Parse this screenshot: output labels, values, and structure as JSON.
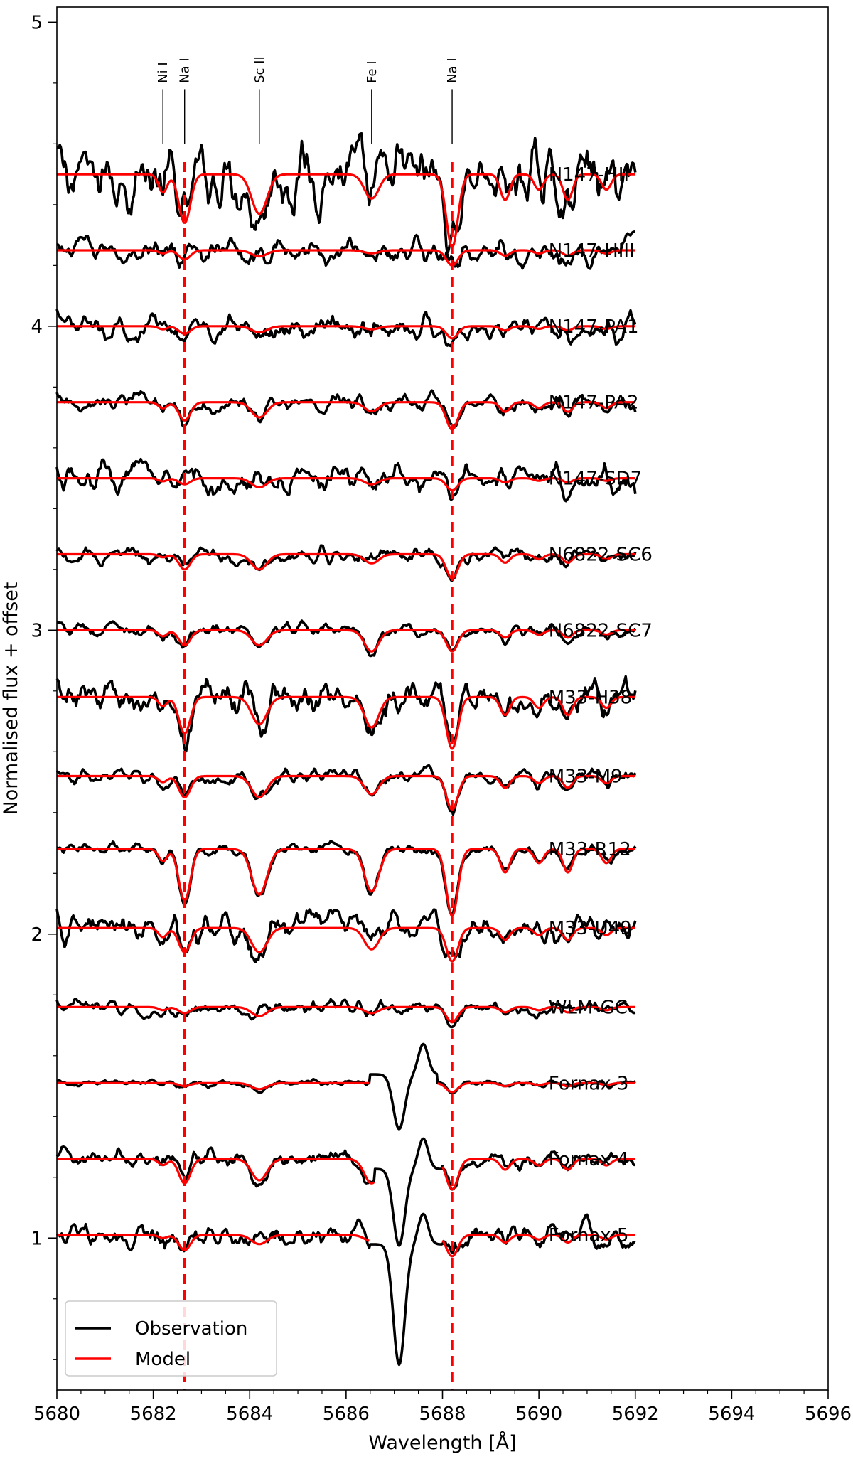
{
  "chart_data": {
    "type": "line",
    "xlabel": "Wavelength [Å]",
    "ylabel": "Normalised flux + offset",
    "xlim": [
      5680,
      5696
    ],
    "ylim": [
      0.5,
      5.05
    ],
    "xticks": [
      5680,
      5682,
      5684,
      5686,
      5688,
      5690,
      5692,
      5694,
      5696
    ],
    "yticks": [
      1,
      2,
      3,
      4,
      5
    ],
    "legend": {
      "position": "lower-left",
      "entries": [
        {
          "name": "Observation",
          "color": "#000000"
        },
        {
          "name": "Model",
          "color": "#ff0000"
        }
      ]
    },
    "spectral_lines": [
      {
        "label": "Ni I",
        "wavelength": 5682.2
      },
      {
        "label": "Na I",
        "wavelength": 5682.65
      },
      {
        "label": "Sc II",
        "wavelength": 5684.2
      },
      {
        "label": "Fe I",
        "wavelength": 5686.53
      },
      {
        "label": "Na I",
        "wavelength": 5688.2
      }
    ],
    "reference_lines": [
      5682.65,
      5688.2
    ],
    "colors": {
      "observation": "#000000",
      "model": "#ff0000"
    },
    "wavelength_range": [
      5680,
      5692
    ],
    "series": [
      {
        "name": "N147-HII",
        "offset": 4.5,
        "noise": 0.11,
        "depths": [
          0.06,
          0.16,
          0.13,
          0.08,
          0.24
        ],
        "masked": []
      },
      {
        "name": "N147-HIII",
        "offset": 4.25,
        "noise": 0.045,
        "depths": [
          0.01,
          0.03,
          0.02,
          0.01,
          0.05
        ],
        "masked": []
      },
      {
        "name": "N147-PA1",
        "offset": 4.0,
        "noise": 0.04,
        "depths": [
          0.01,
          0.025,
          0.02,
          0.01,
          0.04
        ],
        "masked": []
      },
      {
        "name": "N147-PA2",
        "offset": 3.75,
        "noise": 0.03,
        "depths": [
          0.02,
          0.06,
          0.05,
          0.03,
          0.09
        ],
        "masked": []
      },
      {
        "name": "N147-SD7",
        "offset": 3.5,
        "noise": 0.05,
        "depths": [
          0.01,
          0.02,
          0.03,
          0.02,
          0.04
        ],
        "masked": []
      },
      {
        "name": "N6822-SC6",
        "offset": 3.25,
        "noise": 0.025,
        "depths": [
          0.01,
          0.05,
          0.05,
          0.03,
          0.08
        ],
        "masked": []
      },
      {
        "name": "N6822-SC7",
        "offset": 3.0,
        "noise": 0.02,
        "depths": [
          0.02,
          0.05,
          0.05,
          0.07,
          0.07
        ],
        "masked": []
      },
      {
        "name": "M33-H38",
        "offset": 2.78,
        "noise": 0.06,
        "depths": [
          0.03,
          0.12,
          0.09,
          0.1,
          0.17
        ],
        "masked": []
      },
      {
        "name": "M33-M9",
        "offset": 2.52,
        "noise": 0.025,
        "depths": [
          0.02,
          0.07,
          0.07,
          0.06,
          0.11
        ],
        "masked": []
      },
      {
        "name": "M33-R12",
        "offset": 2.28,
        "noise": 0.02,
        "depths": [
          0.04,
          0.17,
          0.15,
          0.14,
          0.22
        ],
        "masked": []
      },
      {
        "name": "M33-U49",
        "offset": 2.02,
        "noise": 0.05,
        "depths": [
          0.03,
          0.08,
          0.08,
          0.07,
          0.11
        ],
        "masked": []
      },
      {
        "name": "WLM-GC",
        "offset": 1.76,
        "noise": 0.025,
        "depths": [
          0.01,
          0.02,
          0.03,
          0.02,
          0.05
        ],
        "masked": []
      },
      {
        "name": "Fornax 3",
        "offset": 1.51,
        "noise": 0.01,
        "depths": [
          0.0,
          0.01,
          0.02,
          0.0,
          0.03
        ],
        "masked": [
          5686.5,
          5687.9
        ]
      },
      {
        "name": "Fornax 4",
        "offset": 1.26,
        "noise": 0.03,
        "depths": [
          0.02,
          0.08,
          0.07,
          0.08,
          0.1
        ],
        "masked": [
          5686.6,
          5688.0
        ]
      },
      {
        "name": "Fornax 5",
        "offset": 1.01,
        "noise": 0.04,
        "depths": [
          0.01,
          0.05,
          0.03,
          0.02,
          0.07
        ],
        "masked": [
          5686.5,
          5688.0
        ]
      }
    ]
  }
}
